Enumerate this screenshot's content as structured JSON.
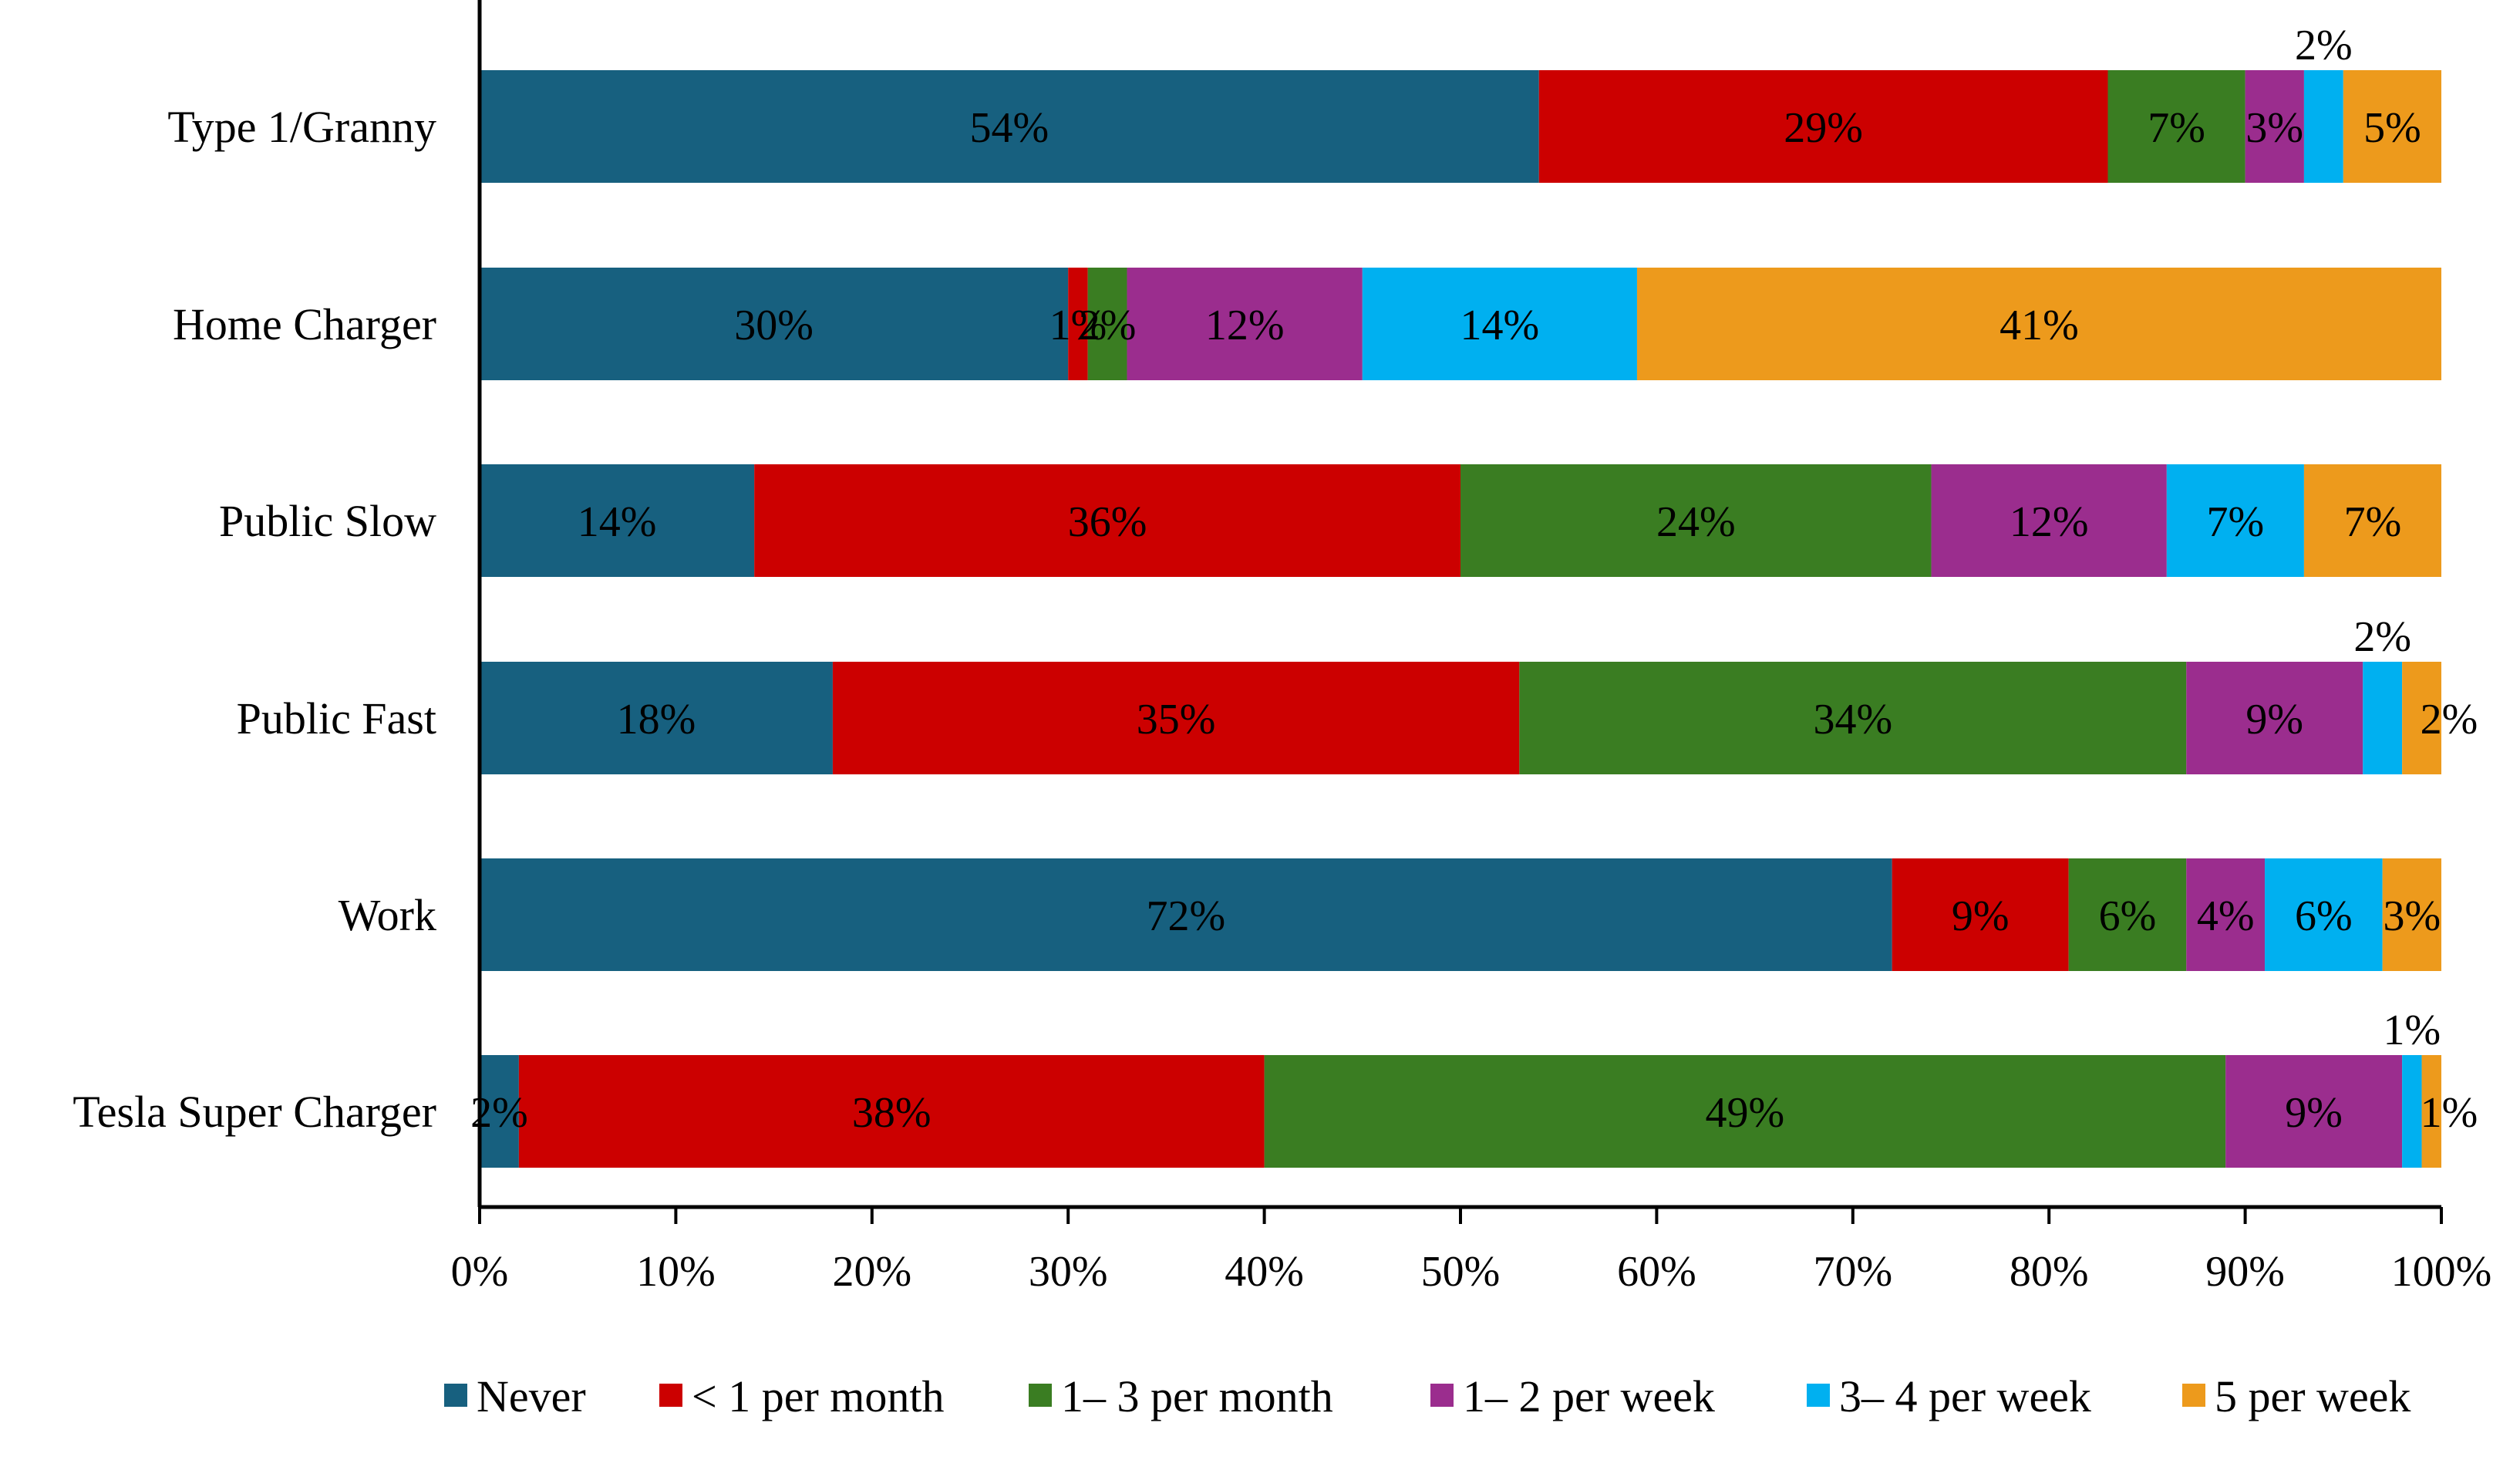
{
  "chart_data": {
    "type": "bar",
    "orientation": "horizontal",
    "stacked": true,
    "title": "",
    "xlabel": "",
    "ylabel": "",
    "xlim": [
      0,
      100
    ],
    "x_ticks": [
      "0%",
      "10%",
      "20%",
      "30%",
      "40%",
      "50%",
      "60%",
      "70%",
      "80%",
      "90%",
      "100%"
    ],
    "categories": [
      "Type 1/Granny",
      "Home Charger",
      "Public Slow",
      "Public Fast",
      "Work",
      "Tesla Super Charger"
    ],
    "series": [
      {
        "name": "Never",
        "color": "#17607f",
        "values": [
          54,
          30,
          14,
          18,
          72,
          2
        ],
        "labels": [
          "54%",
          "30%",
          "14%",
          "18%",
          "72%",
          "2%"
        ]
      },
      {
        "name": "< 1 per month",
        "color": "#cc0000",
        "values": [
          29,
          1,
          36,
          35,
          9,
          38
        ],
        "labels": [
          "29%",
          "1%",
          "36%",
          "35%",
          "9%",
          "38%"
        ]
      },
      {
        "name": "1– 3 per month",
        "color": "#3a7d22",
        "values": [
          7,
          2,
          24,
          34,
          6,
          49
        ],
        "labels": [
          "7%",
          "2%",
          "24%",
          "34%",
          "6%",
          "49%"
        ]
      },
      {
        "name": "1– 2 per week",
        "color": "#9b2d8e",
        "values": [
          3,
          12,
          12,
          9,
          4,
          9
        ],
        "labels": [
          "3%",
          "12%",
          "12%",
          "9%",
          "4%",
          "9%"
        ]
      },
      {
        "name": "3– 4 per week",
        "color": "#00b0f0",
        "values": [
          2,
          14,
          7,
          2,
          6,
          1
        ],
        "labels": [
          "2%",
          "14%",
          "7%",
          "2%",
          "6%",
          "1%"
        ]
      },
      {
        "name": "5 per week",
        "color": "#ed9a1c",
        "values": [
          5,
          41,
          7,
          2,
          3,
          1
        ],
        "labels": [
          "5%",
          "41%",
          "7%",
          "2%",
          "3%",
          "1%"
        ]
      }
    ],
    "legend_position": "bottom",
    "grid": false
  }
}
